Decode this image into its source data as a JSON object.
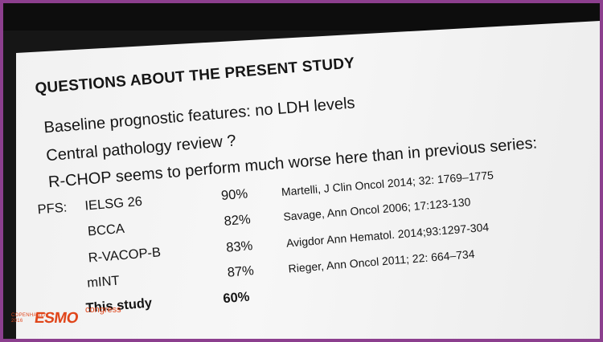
{
  "slide": {
    "title": "QUESTIONS ABOUT THE PRESENT STUDY",
    "lines": [
      "Baseline prognostic features: no LDH levels",
      "Central pathology review ?",
      "R-CHOP seems to perform much worse here than in previous series:"
    ],
    "pfs_label": "PFS:",
    "rows": [
      {
        "study": "IELSG 26",
        "value": "90%",
        "ref": "Martelli, J Clin Oncol 2014; 32: 1769–1775"
      },
      {
        "study": "BCCA",
        "value": "82%",
        "ref": "Savage, Ann Oncol  2006; 17:123-130"
      },
      {
        "study": "R-VACOP-B",
        "value": "83%",
        "ref": "Avigdor Ann Hematol. 2014;93:1297-304"
      },
      {
        "study": "mINT",
        "value": "87%",
        "ref": "Rieger, Ann Oncol 2011; 22: 664–734"
      },
      {
        "study": "This study",
        "value": "60%",
        "ref": ""
      }
    ]
  },
  "logo": {
    "small_lines": [
      "COPENHAGEN",
      "2016"
    ],
    "main": "ESMO",
    "suffix": "congress"
  },
  "colors": {
    "frame": "#8c3f8e",
    "screen": "#f4f4f4",
    "text": "#151515",
    "logo": "#e0461b"
  }
}
